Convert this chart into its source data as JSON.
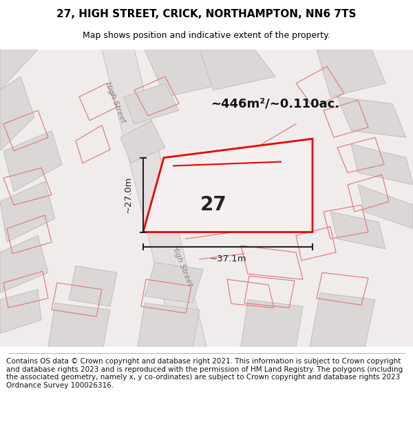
{
  "title": "27, HIGH STREET, CRICK, NORTHAMPTON, NN6 7TS",
  "subtitle": "Map shows position and indicative extent of the property.",
  "footer": "Contains OS data © Crown copyright and database right 2021. This information is subject to Crown copyright and database rights 2023 and is reproduced with the permission of HM Land Registry. The polygons (including the associated geometry, namely x, y co-ordinates) are subject to Crown copyright and database rights 2023 Ordnance Survey 100026316.",
  "area_label": "~446m²/~0.110ac.",
  "width_label": "~37.1m",
  "height_label": "~27.0m",
  "plot_number": "27",
  "street_label": "High Street",
  "map_bg": "#f0ecec",
  "plot_fill": "#f5f0f0",
  "plot_edge_color": "#ee0000",
  "gray_parcel_color": "#dbd7d7",
  "gray_parcel_edge": "#c0b8b8",
  "pink_edge_color": "#e08080",
  "road_fill": "#e8e4e4",
  "title_fontsize": 11,
  "subtitle_fontsize": 9,
  "footer_fontsize": 7.5,
  "annotation_color": "#222222",
  "label_color": "#888080",
  "inner_line_color": "#ee0000",
  "plot_label_color": "#222222"
}
